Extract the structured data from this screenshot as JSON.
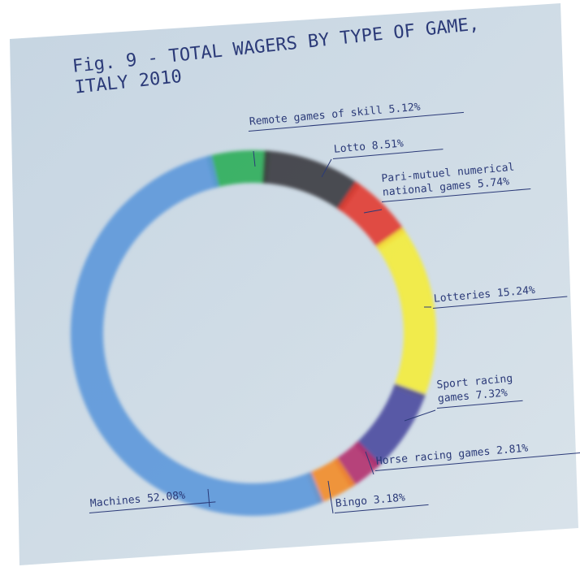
{
  "chart_data": {
    "type": "donut",
    "title": "Fig. 9 - TOTAL WAGERS BY TYPE OF GAME, ITALY 2010",
    "categories": [
      "Remote games of skill",
      "Lotto",
      "Pari-mutuel numerical national games",
      "Lotteries",
      "Sport racing games",
      "Horse racing games",
      "Bingo",
      "Machines"
    ],
    "values": [
      5.12,
      8.51,
      5.74,
      15.24,
      7.32,
      2.81,
      3.18,
      52.08
    ],
    "value_labels": [
      "5.12%",
      "8.51%",
      "5.74%",
      "15.24%",
      "7.32%",
      "2.81%",
      "3.18%",
      "52.08%"
    ],
    "colors": [
      "#2fae5a",
      "#3b3b40",
      "#e23a30",
      "#f4ec3c",
      "#4a4aa0",
      "#b4306e",
      "#f28c2a",
      "#5d98da"
    ]
  }
}
